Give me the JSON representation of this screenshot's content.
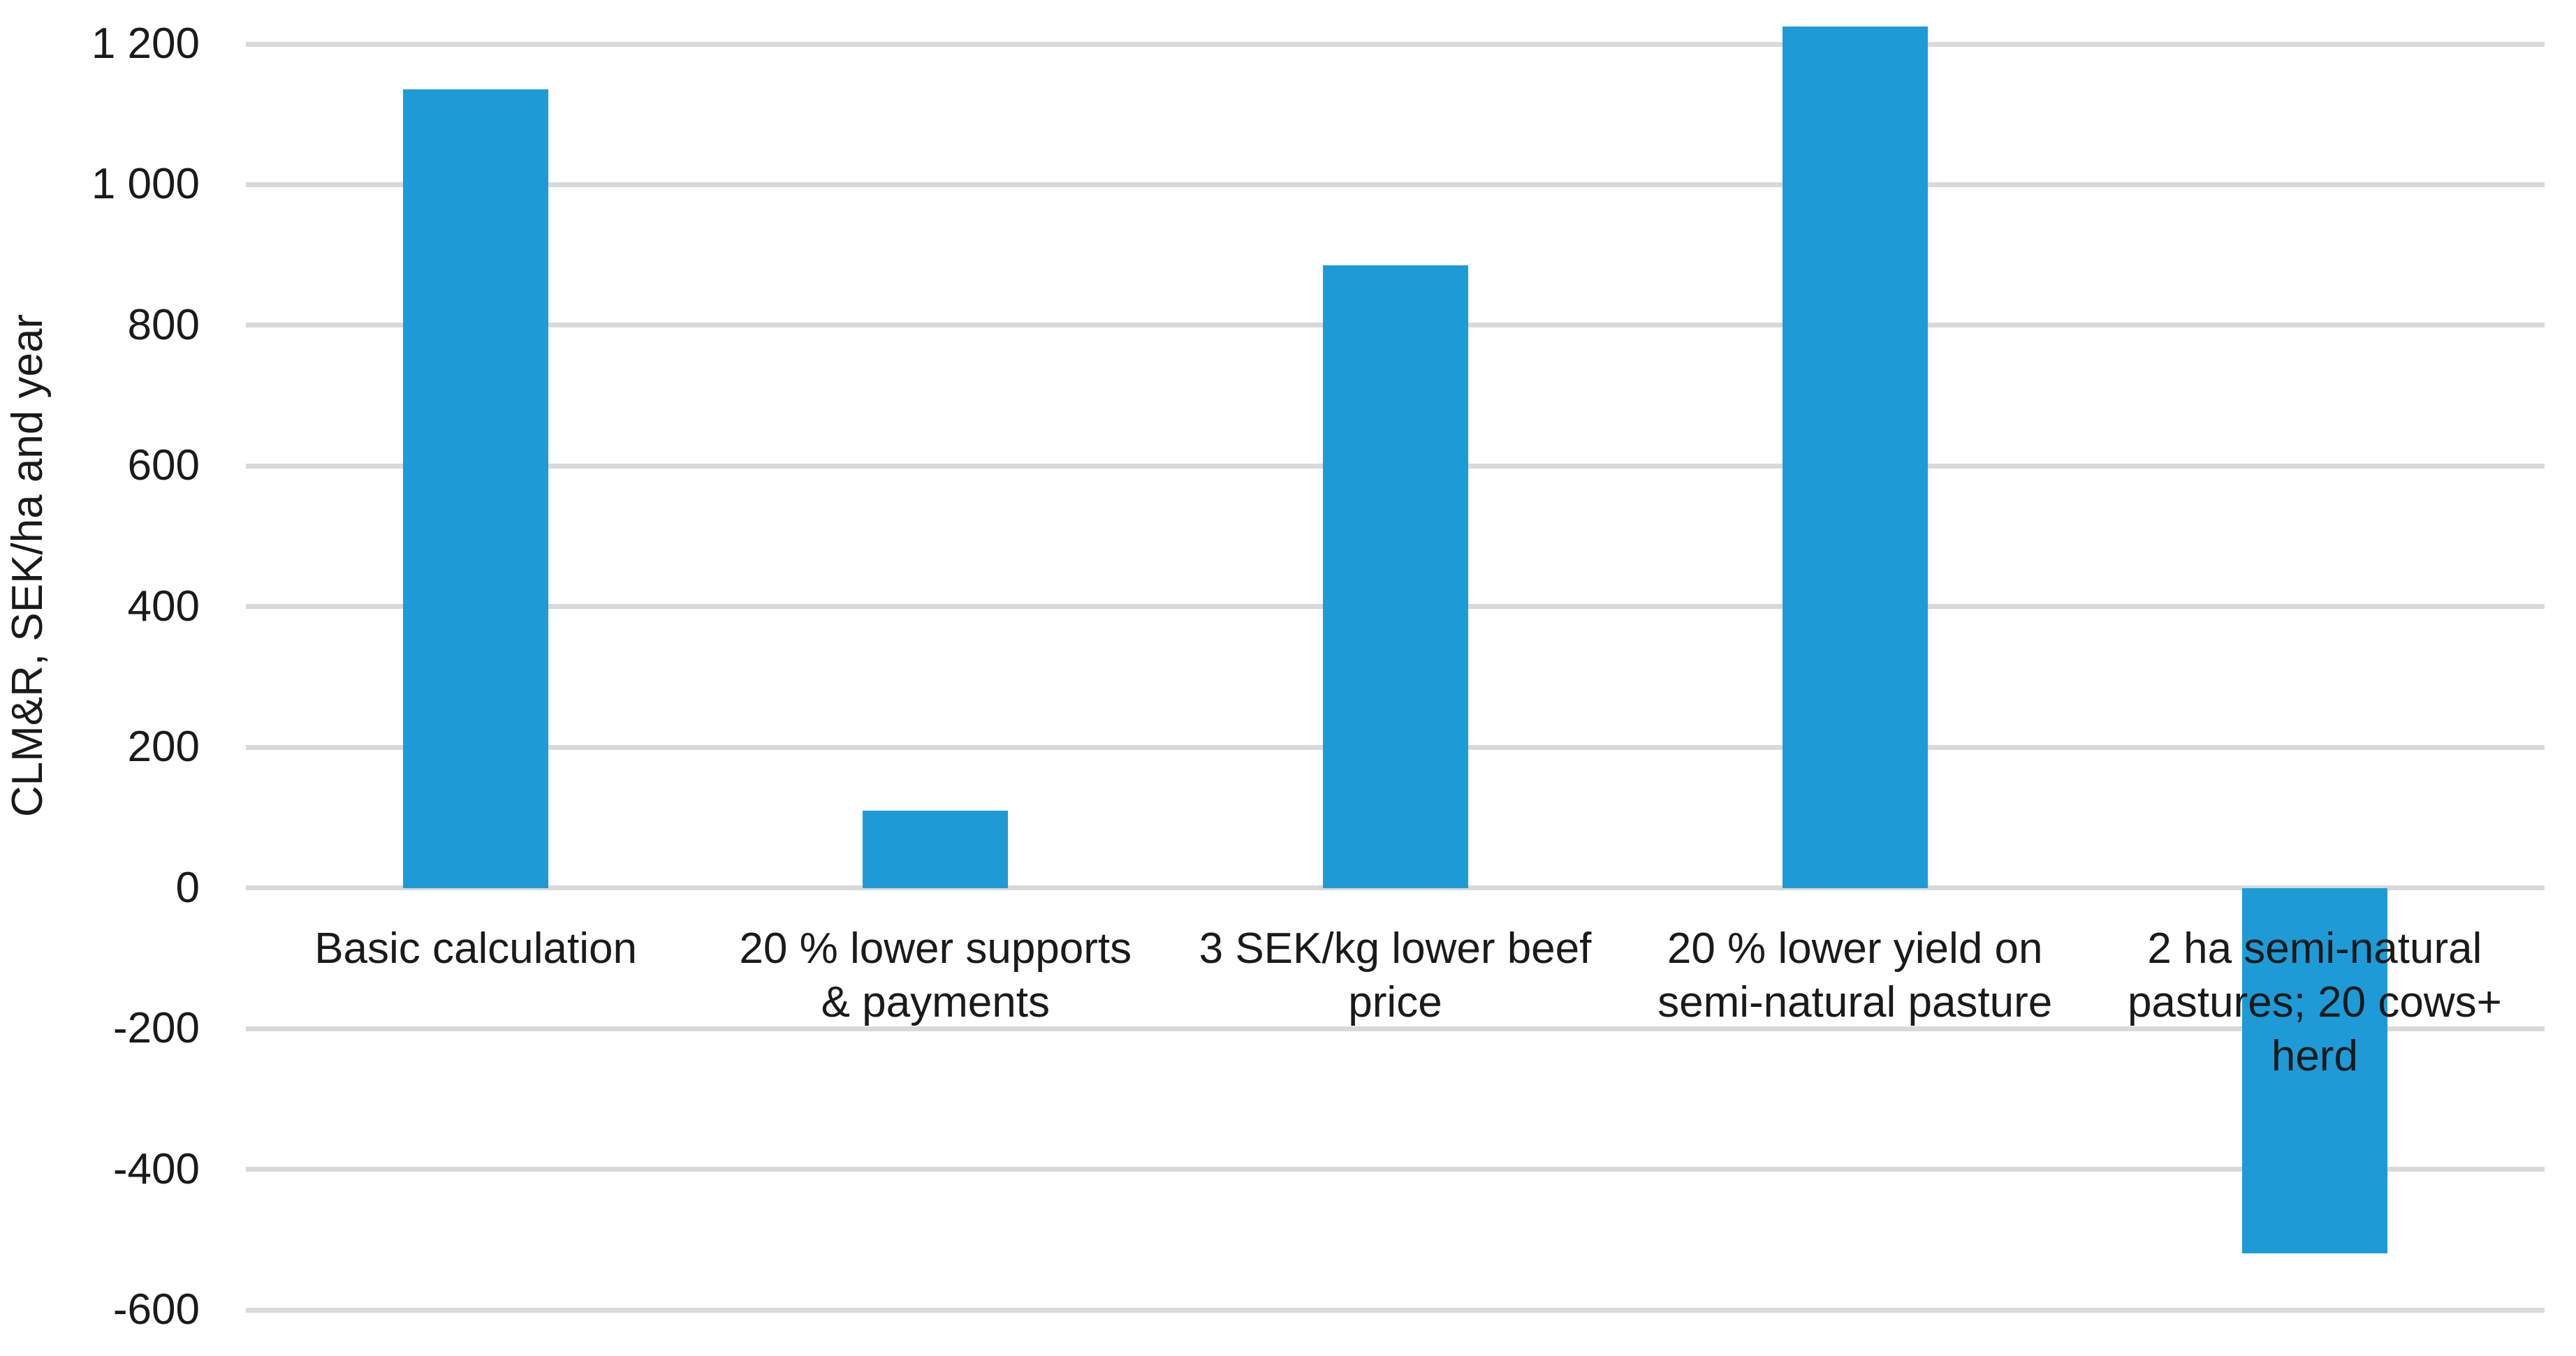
{
  "chart_data": {
    "type": "bar",
    "title": "",
    "xlabel": "",
    "ylabel": "CLM&R, SEK/ha and year",
    "categories": [
      "Basic calculation",
      "20 % lower supports & payments",
      "3 SEK/kg lower beef price",
      "20 % lower yield on semi-natural pasture",
      "2 ha semi-natural pastures; 20 cows+ herd"
    ],
    "label_lines": [
      [
        "Basic calculation"
      ],
      [
        "20 % lower supports",
        "& payments"
      ],
      [
        "3 SEK/kg lower beef",
        "price"
      ],
      [
        "20 % lower yield on",
        "semi-natural pasture"
      ],
      [
        "2 ha semi-natural",
        "pastures; 20 cows+",
        "herd"
      ]
    ],
    "values": [
      1135,
      110,
      885,
      1225,
      -520
    ],
    "ylim": [
      -600,
      1200
    ],
    "ytick_step": 200,
    "yticks": [
      1200,
      1000,
      800,
      600,
      400,
      200,
      0,
      -200,
      -400,
      -600
    ],
    "ytick_labels": [
      "1 200",
      "1 000",
      "800",
      "600",
      "400",
      "200",
      "0",
      "-200",
      "-400",
      "-600"
    ],
    "grid": true,
    "legend": false,
    "colors": {
      "bar": "#1E9BD7",
      "gridline": "#D9D9D9",
      "text": "#1A1A1A",
      "background": "#FFFFFF"
    }
  }
}
